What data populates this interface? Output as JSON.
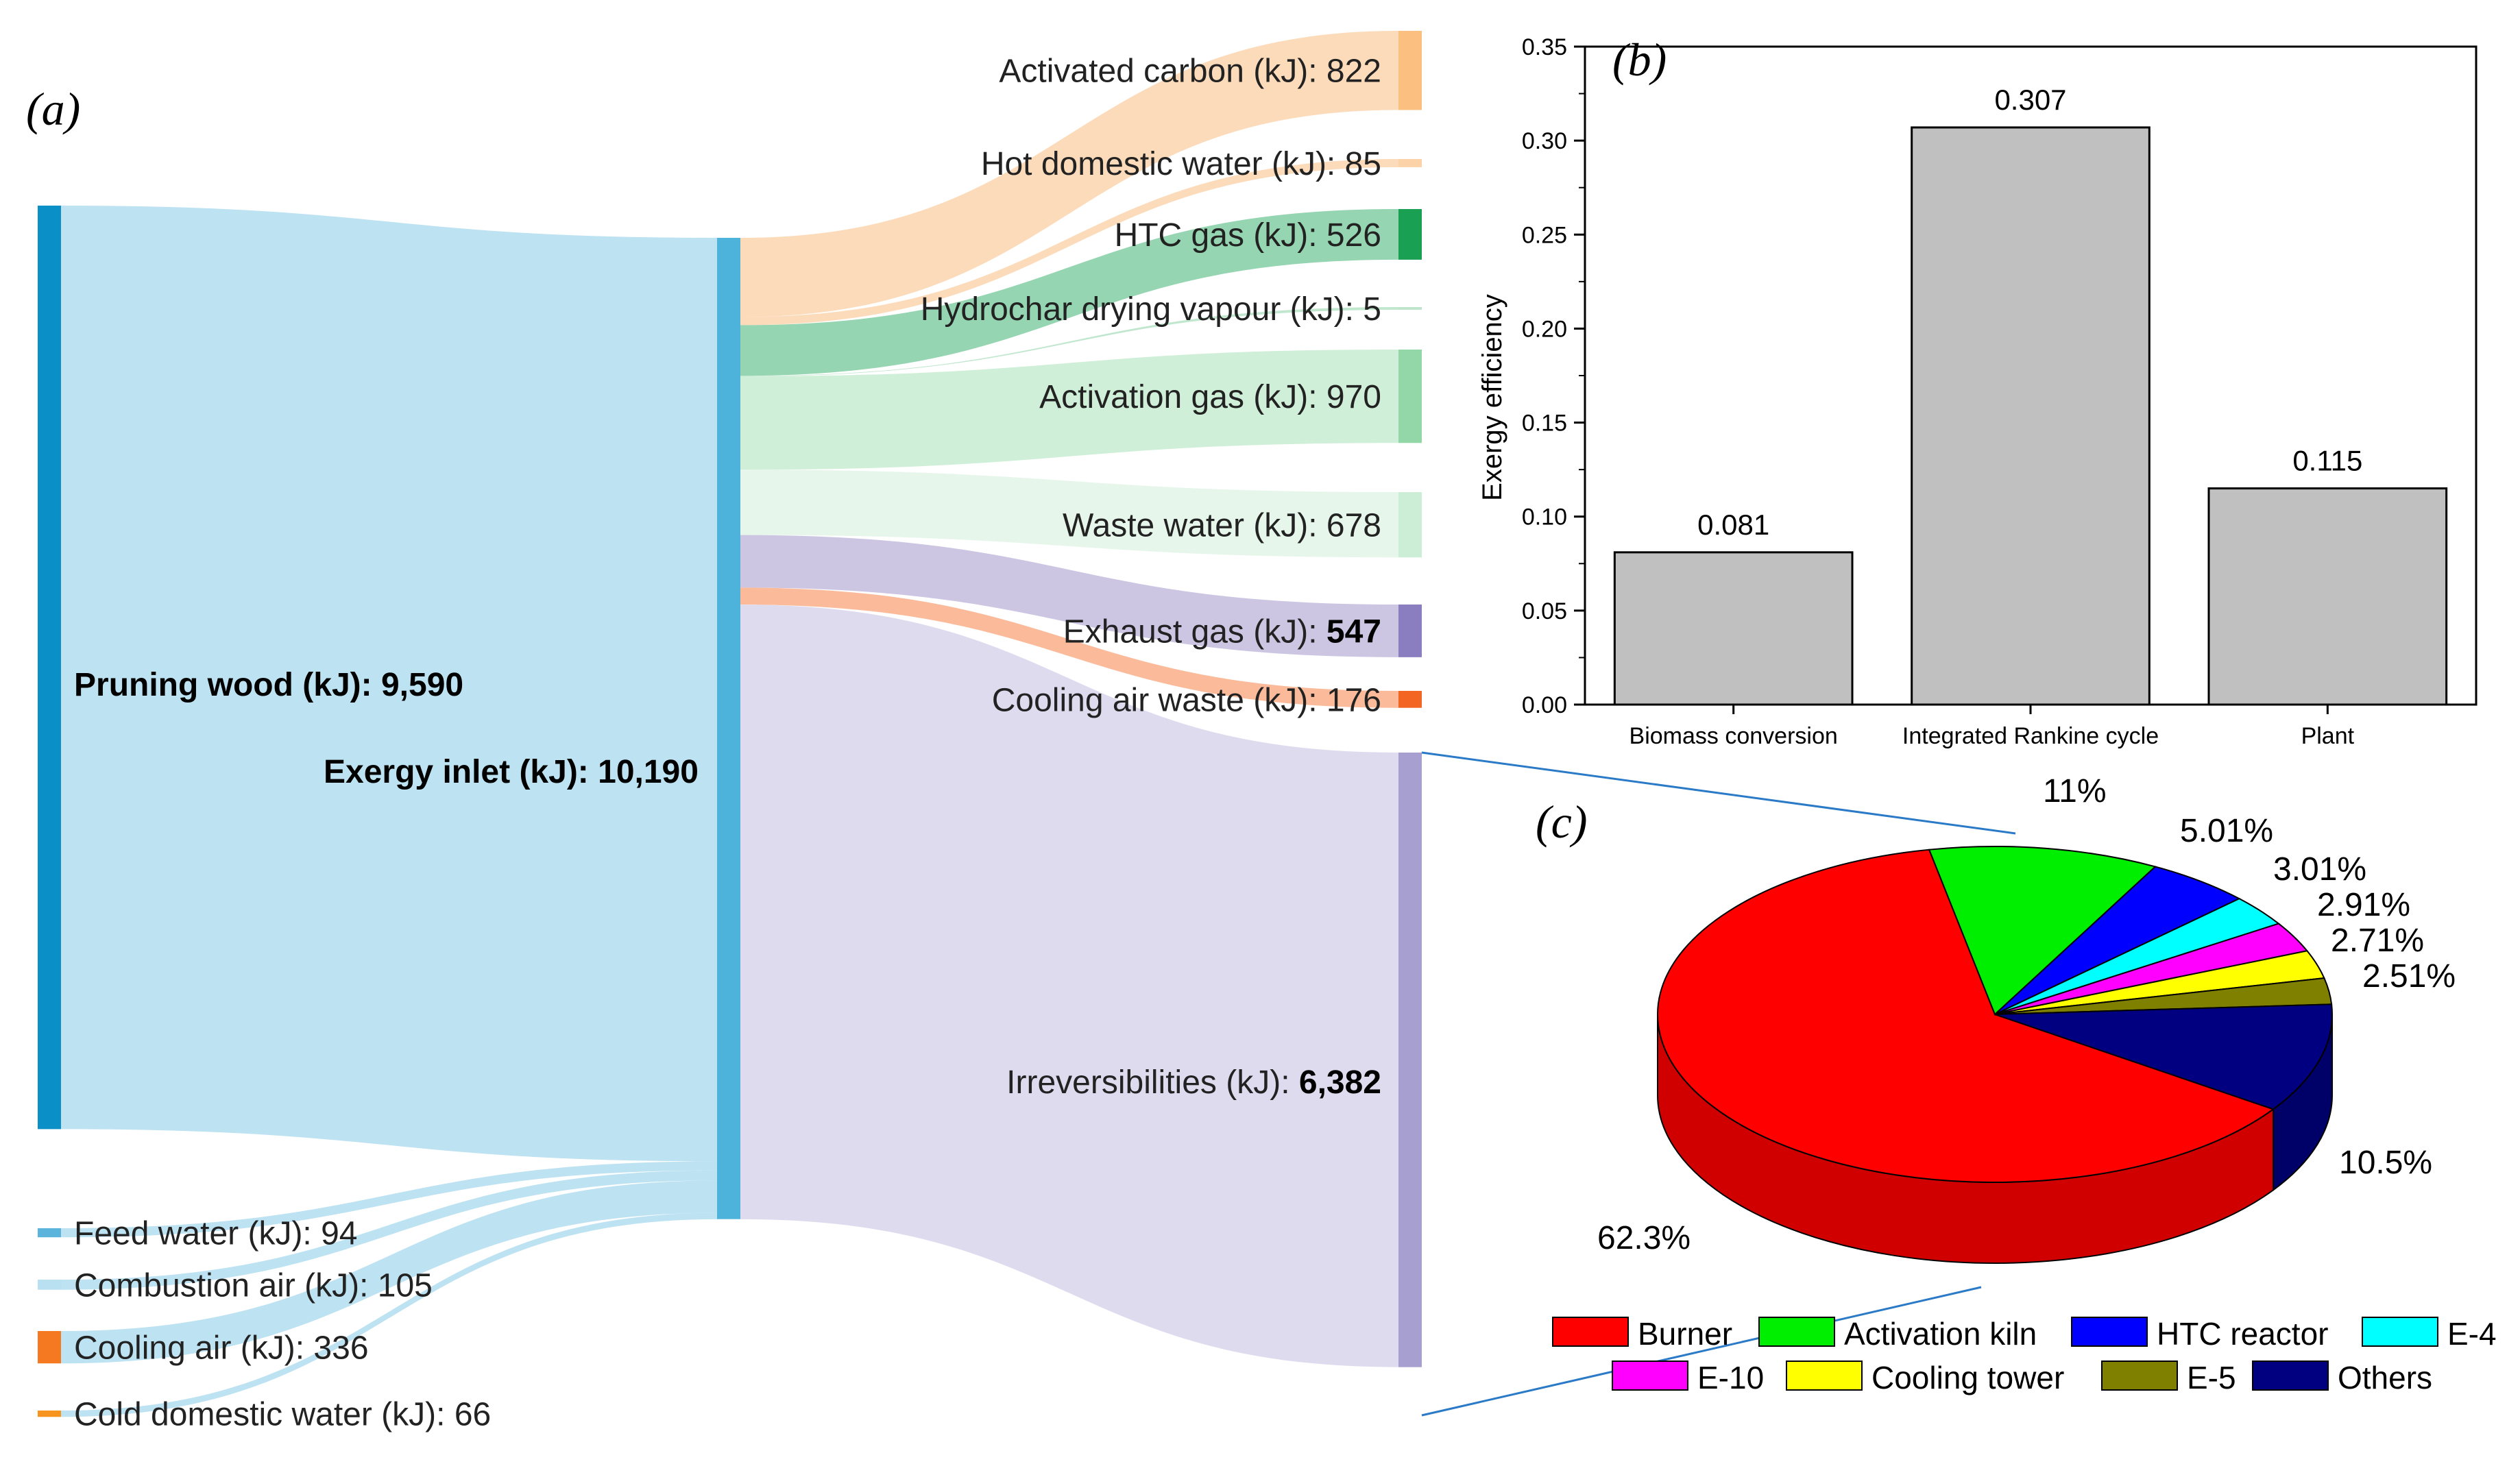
{
  "chart_data": [
    {
      "panel": "(a)",
      "type": "sankey",
      "inputs": [
        {
          "label": "Pruning wood (kJ): 9,590",
          "value": 9590,
          "color": "#0a8fc6",
          "flow_color": "#b9e0f1"
        },
        {
          "label": "Feed water (kJ): 94",
          "value": 94,
          "color": "#5ab4dc",
          "flow_color": "#b9e0f1"
        },
        {
          "label": "Combustion air (kJ): 105",
          "value": 105,
          "color": "#b9e0f1",
          "flow_color": "#b9e0f1"
        },
        {
          "label": "Cooling air (kJ): 336",
          "value": 336,
          "color": "#f47920",
          "flow_color": "#b9e0f1"
        },
        {
          "label": "Cold domestic water (kJ): 66",
          "value": 66,
          "color": "#f7941d",
          "flow_color": "#b9e0f1"
        }
      ],
      "center": {
        "label": "Exergy inlet (kJ): 10,190",
        "value": 10190,
        "color": "#4db3db"
      },
      "outputs": [
        {
          "label": "Activated carbon (kJ): 822",
          "value": 822,
          "color": "#fbbf80",
          "flow_color": "#fcd9b6"
        },
        {
          "label": "Hot domestic water (kJ): 85",
          "value": 85,
          "color": "#fcd3a8",
          "flow_color": "#fcd9b6"
        },
        {
          "label": "HTC gas (kJ): 526",
          "value": 526,
          "color": "#1aa053",
          "flow_color": "#8fd3ad"
        },
        {
          "label": "Hydrochar drying vapour (kJ): 5",
          "value": 5,
          "color": "#bfe6cc",
          "flow_color": "#bfe6cc"
        },
        {
          "label": "Activation gas (kJ): 970",
          "value": 970,
          "color": "#93d7a8",
          "flow_color": "#cdeed6"
        },
        {
          "label": "Waste water (kJ): 678",
          "value": 678,
          "color": "#cdeed6",
          "flow_color": "#e6f6ea"
        },
        {
          "label_prefix": "Exhaust gas (kJ): ",
          "label_value": "547",
          "value": 547,
          "color": "#8a7ec0",
          "flow_color": "#c9c3e2"
        },
        {
          "label": "Cooling air waste (kJ): 176",
          "value": 176,
          "color": "#f26522",
          "flow_color": "#fbb694"
        },
        {
          "label_prefix": "Irreversibilities (kJ): ",
          "label_value": "6,382",
          "value": 6382,
          "color": "#a89fd1",
          "flow_color": "#dcd9ee"
        }
      ]
    },
    {
      "panel": "(b)",
      "type": "bar",
      "categories": [
        "Biomass conversion",
        "Integrated Rankine cycle",
        "Plant"
      ],
      "values": [
        0.081,
        0.307,
        0.115
      ],
      "data_labels": [
        "0.081",
        "0.307",
        "0.115"
      ],
      "ylabel": "Exergy efficiency",
      "ylim": [
        0,
        0.35
      ],
      "yticks": [
        "0.00",
        "0.05",
        "0.10",
        "0.15",
        "0.20",
        "0.25",
        "0.30",
        "0.35"
      ],
      "bar_color": "#c0c0c0",
      "grid": false
    },
    {
      "panel": "(c)",
      "type": "pie",
      "style": "3d",
      "slices": [
        {
          "name": "Burner",
          "value": 62.3,
          "label": "62.3%",
          "color": "#ff0000"
        },
        {
          "name": "Activation kiln",
          "value": 11,
          "label": "11%",
          "color": "#00ee00"
        },
        {
          "name": "HTC reactor",
          "value": 5.01,
          "label": "5.01%",
          "color": "#0000ff"
        },
        {
          "name": "E-4",
          "value": 3.01,
          "label": "3.01%",
          "color": "#00ffff"
        },
        {
          "name": "E-10",
          "value": 2.91,
          "label": "2.91%",
          "color": "#ff00ff"
        },
        {
          "name": "Cooling tower",
          "value": 2.71,
          "label": "2.71%",
          "color": "#ffff00"
        },
        {
          "name": "E-5",
          "value": 2.51,
          "label": "2.51%",
          "color": "#808000"
        },
        {
          "name": "Others",
          "value": 10.5,
          "label": "10.5%",
          "color": "#000080"
        }
      ],
      "legend": [
        "Burner",
        "Activation kiln",
        "HTC reactor",
        "E-4",
        "E-10",
        "Cooling tower",
        "E-5",
        "Others"
      ],
      "legend_position": "bottom"
    }
  ]
}
